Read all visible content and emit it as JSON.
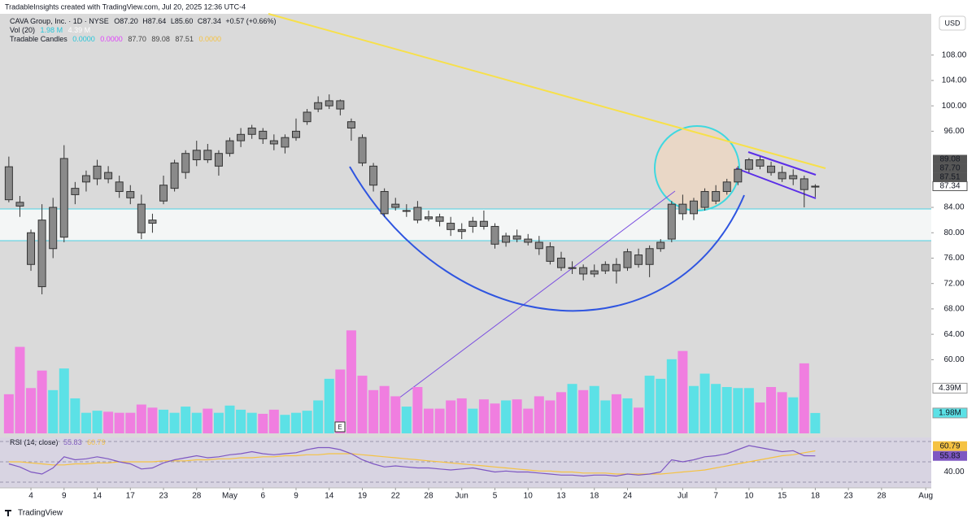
{
  "watermark": "TradableInsights created with TradingView.com, Jul 20, 2025 12:36 UTC-4",
  "legend": {
    "title": "CAVA Group, Inc. · 1D · NYSE",
    "ohlc": [
      "O87.20",
      "H87.64",
      "L85.60",
      "C87.34",
      "+0.57 (+0.66%)"
    ],
    "vol": [
      "Vol (20)",
      "1.98 M",
      "4.39 M"
    ],
    "tc": [
      "Tradable Candles",
      "0.0000",
      "0.0000",
      "87.70",
      "89.08",
      "87.51",
      "0.0000"
    ]
  },
  "currency": "USD",
  "footer": "TradingView",
  "earnings_marker": "E",
  "chart_data": {
    "type": "candlestick",
    "xlim": [
      -0.8,
      83.5
    ],
    "xticks": [
      {
        "value": 2,
        "label": "4"
      },
      {
        "value": 5,
        "label": "9"
      },
      {
        "value": 8,
        "label": "14"
      },
      {
        "value": 11,
        "label": "17"
      },
      {
        "value": 14,
        "label": "23"
      },
      {
        "value": 17,
        "label": "28"
      },
      {
        "value": 20,
        "label": "May"
      },
      {
        "value": 23,
        "label": "6"
      },
      {
        "value": 26,
        "label": "9"
      },
      {
        "value": 29,
        "label": "14"
      },
      {
        "value": 32,
        "label": "19"
      },
      {
        "value": 35,
        "label": "22"
      },
      {
        "value": 38,
        "label": "28"
      },
      {
        "value": 41,
        "label": "Jun"
      },
      {
        "value": 44,
        "label": "5"
      },
      {
        "value": 47,
        "label": "10"
      },
      {
        "value": 50,
        "label": "13"
      },
      {
        "value": 53,
        "label": "18"
      },
      {
        "value": 56,
        "label": "24"
      },
      {
        "value": 61,
        "label": "Jul"
      },
      {
        "value": 64,
        "label": "7"
      },
      {
        "value": 67,
        "label": "10"
      },
      {
        "value": 70,
        "label": "15"
      },
      {
        "value": 73,
        "label": "18"
      },
      {
        "value": 76,
        "label": "23"
      },
      {
        "value": 79,
        "label": "28"
      },
      {
        "value": 83,
        "label": "Aug"
      }
    ],
    "ylim": [
      39.8,
      114.5
    ],
    "yticks": [
      {
        "value": 108,
        "label": "108.00"
      },
      {
        "value": 104,
        "label": "104.00"
      },
      {
        "value": 100,
        "label": "100.00"
      },
      {
        "value": 96,
        "label": "96.00"
      },
      {
        "value": 84,
        "label": "84.00"
      },
      {
        "value": 80,
        "label": "80.00"
      },
      {
        "value": 76,
        "label": "76.00"
      },
      {
        "value": 72,
        "label": "72.00"
      },
      {
        "value": 68,
        "label": "68.00"
      },
      {
        "value": 64,
        "label": "64.00"
      },
      {
        "value": 60,
        "label": "60.00"
      }
    ],
    "candle_color": "#8a8a8a",
    "candles": [
      [
        90.4,
        92.0,
        84.8,
        85.2
      ],
      [
        84.8,
        85.8,
        82.5,
        84.2
      ],
      [
        80.0,
        80.5,
        74.0,
        75.0
      ],
      [
        82.0,
        84.5,
        70.3,
        71.5
      ],
      [
        77.5,
        85.5,
        76.0,
        84.0
      ],
      [
        79.3,
        93.8,
        78.5,
        91.7
      ],
      [
        86.0,
        88.0,
        84.5,
        87.0
      ],
      [
        88.0,
        89.8,
        86.5,
        89.0
      ],
      [
        88.5,
        91.5,
        87.5,
        90.5
      ],
      [
        89.5,
        90.5,
        87.8,
        88.5
      ],
      [
        88.0,
        89.0,
        85.5,
        86.5
      ],
      [
        86.5,
        87.5,
        84.5,
        85.5
      ],
      [
        84.5,
        86.0,
        79.0,
        80.0
      ],
      [
        82.0,
        83.0,
        80.0,
        81.5
      ],
      [
        85.0,
        89.0,
        84.5,
        87.5
      ],
      [
        87.0,
        91.5,
        86.5,
        91.0
      ],
      [
        89.5,
        93.0,
        88.5,
        92.5
      ],
      [
        91.5,
        94.5,
        90.5,
        93.0
      ],
      [
        93.0,
        94.0,
        91.0,
        91.5
      ],
      [
        90.5,
        93.0,
        89.0,
        92.5
      ],
      [
        92.5,
        95.0,
        92.0,
        94.5
      ],
      [
        94.5,
        96.5,
        93.5,
        95.5
      ],
      [
        95.5,
        97.0,
        94.8,
        96.5
      ],
      [
        96.0,
        96.5,
        94.0,
        94.8
      ],
      [
        94.5,
        95.5,
        93.0,
        94.0
      ],
      [
        93.5,
        95.5,
        92.5,
        95.0
      ],
      [
        95.0,
        98.0,
        94.5,
        96.0
      ],
      [
        97.5,
        99.5,
        97.0,
        99.0
      ],
      [
        99.5,
        101.5,
        99.0,
        100.5
      ],
      [
        100.0,
        101.8,
        99.5,
        100.8
      ],
      [
        100.8,
        101.0,
        98.5,
        99.5
      ],
      [
        97.5,
        98.0,
        94.5,
        96.5
      ],
      [
        95.0,
        95.5,
        90.5,
        91.0
      ],
      [
        90.5,
        91.0,
        86.5,
        87.5
      ],
      [
        86.5,
        87.0,
        82.5,
        83.0
      ],
      [
        84.5,
        85.5,
        83.5,
        84.0
      ],
      [
        83.5,
        84.5,
        82.5,
        83.5
      ],
      [
        84.0,
        85.0,
        81.5,
        82.0
      ],
      [
        82.5,
        83.5,
        81.8,
        82.2
      ],
      [
        82.5,
        83.0,
        81.0,
        81.8
      ],
      [
        81.5,
        82.5,
        79.5,
        80.5
      ],
      [
        80.5,
        81.5,
        79.0,
        80.2
      ],
      [
        81.0,
        82.5,
        80.0,
        81.8
      ],
      [
        81.8,
        83.5,
        80.5,
        81.0
      ],
      [
        81.0,
        81.5,
        77.5,
        78.2
      ],
      [
        78.5,
        80.0,
        77.8,
        79.5
      ],
      [
        79.5,
        80.5,
        78.5,
        79.0
      ],
      [
        79.0,
        79.8,
        78.0,
        78.5
      ],
      [
        78.5,
        79.5,
        76.5,
        77.5
      ],
      [
        77.8,
        78.5,
        75.0,
        75.5
      ],
      [
        76.0,
        77.0,
        74.0,
        74.5
      ],
      [
        74.5,
        75.5,
        73.5,
        74.5
      ],
      [
        74.5,
        75.0,
        72.5,
        73.5
      ],
      [
        73.5,
        75.0,
        73.0,
        74.0
      ],
      [
        74.0,
        75.5,
        73.5,
        75.0
      ],
      [
        75.0,
        76.0,
        72.0,
        74.0
      ],
      [
        74.5,
        77.5,
        74.0,
        77.0
      ],
      [
        76.5,
        77.5,
        74.5,
        75.0
      ],
      [
        75.0,
        78.0,
        73.0,
        77.5
      ],
      [
        77.5,
        79.0,
        77.0,
        78.5
      ],
      [
        79.0,
        85.0,
        78.5,
        84.5
      ],
      [
        84.5,
        86.0,
        82.0,
        83.0
      ],
      [
        83.0,
        85.5,
        82.0,
        85.0
      ],
      [
        84.0,
        87.0,
        83.5,
        86.5
      ],
      [
        85.0,
        87.5,
        84.5,
        86.5
      ],
      [
        86.5,
        88.5,
        86.0,
        88.0
      ],
      [
        88.0,
        90.5,
        87.5,
        90.0
      ],
      [
        90.0,
        91.8,
        89.5,
        91.5
      ],
      [
        91.5,
        92.0,
        90.0,
        90.5
      ],
      [
        90.5,
        91.2,
        89.0,
        89.5
      ],
      [
        89.5,
        90.5,
        88.0,
        88.5
      ],
      [
        88.5,
        90.0,
        87.5,
        89.0
      ],
      [
        88.5,
        89.0,
        84.0,
        86.8
      ],
      [
        87.2,
        87.64,
        85.6,
        87.34
      ]
    ],
    "price_labels": [
      {
        "value": 89.08,
        "label": "89.08",
        "color": "#555555"
      },
      {
        "value": 87.7,
        "label": "87.70",
        "color": "#555555"
      },
      {
        "value": 87.51,
        "label": "87.51",
        "color": "#555555"
      },
      {
        "value": 87.34,
        "label": "87.34",
        "color": "#ffffff"
      }
    ],
    "volume": {
      "lim": [
        0,
        10.5
      ],
      "up_color": "#5ce1e6",
      "down_color": "#f07ee0",
      "values": [
        3.8,
        8.4,
        4.4,
        6.1,
        4.2,
        6.3,
        3.4,
        2.0,
        2.2,
        2.1,
        2.0,
        2.0,
        2.8,
        2.5,
        2.3,
        2.0,
        2.6,
        2.0,
        2.4,
        2.0,
        2.7,
        2.3,
        2.0,
        1.9,
        2.3,
        1.8,
        2.0,
        2.2,
        3.2,
        5.3,
        6.2,
        10.0,
        5.6,
        4.2,
        4.6,
        3.6,
        2.6,
        4.5,
        2.4,
        2.4,
        3.2,
        3.4,
        2.4,
        3.3,
        2.9,
        3.2,
        3.3,
        2.4,
        3.6,
        3.2,
        4.0,
        4.8,
        4.2,
        4.6,
        3.2,
        3.8,
        3.4,
        2.5,
        5.6,
        5.3,
        7.2,
        8.0,
        4.6,
        5.8,
        4.8,
        4.5,
        4.4,
        4.4,
        3.0,
        4.5,
        4.0,
        3.5,
        6.8,
        1.98
      ],
      "axis_labels": [
        {
          "value": 4.39,
          "label": "4.39M",
          "color": "#ffffff"
        },
        {
          "value": 1.98,
          "label": "1.98M",
          "color": "#5ce1e6"
        }
      ]
    },
    "rsi": {
      "title": "RSI (14, close)",
      "lim": [
        24.4,
        74
      ],
      "levels": [
        70,
        50,
        30
      ],
      "yticks": [
        {
          "value": 40,
          "label": "40.00"
        }
      ],
      "series": [
        {
          "name": "RSI",
          "color": "#7e57c2",
          "values": [
            48,
            45,
            40,
            38,
            44,
            55,
            52,
            53,
            55,
            53,
            50,
            48,
            43,
            44,
            49,
            52,
            54,
            56,
            54,
            55,
            57,
            58,
            60,
            58,
            57,
            58,
            59,
            62,
            64,
            64,
            62,
            58,
            52,
            48,
            45,
            46,
            45,
            44,
            44,
            43,
            42,
            43,
            44,
            42,
            40,
            41,
            40,
            40,
            39,
            38,
            37,
            37,
            36,
            37,
            37,
            36,
            38,
            37,
            38,
            40,
            52,
            50,
            52,
            55,
            56,
            58,
            62,
            66,
            64,
            62,
            60,
            61,
            56,
            55.83
          ]
        },
        {
          "name": "MA",
          "color": "#f5c242",
          "values": [
            50,
            50,
            49,
            48,
            47,
            47,
            48,
            48,
            49,
            49,
            50,
            50,
            50,
            50,
            51,
            51,
            51,
            52,
            52,
            53,
            53,
            54,
            54,
            55,
            55,
            56,
            56,
            57,
            57,
            58,
            58,
            58,
            57,
            56,
            55,
            54,
            53,
            52,
            51,
            50,
            49,
            48,
            47,
            46,
            45,
            44,
            43,
            42,
            41,
            41,
            40,
            40,
            39,
            39,
            39,
            38,
            38,
            38,
            38,
            38,
            39,
            40,
            41,
            42,
            44,
            46,
            48,
            50,
            52,
            54,
            56,
            57,
            59,
            60.79
          ]
        }
      ],
      "value_labels": [
        {
          "value": 60.79,
          "label": "60.79"
        },
        {
          "value": 55.83,
          "label": "55.83"
        }
      ]
    }
  }
}
